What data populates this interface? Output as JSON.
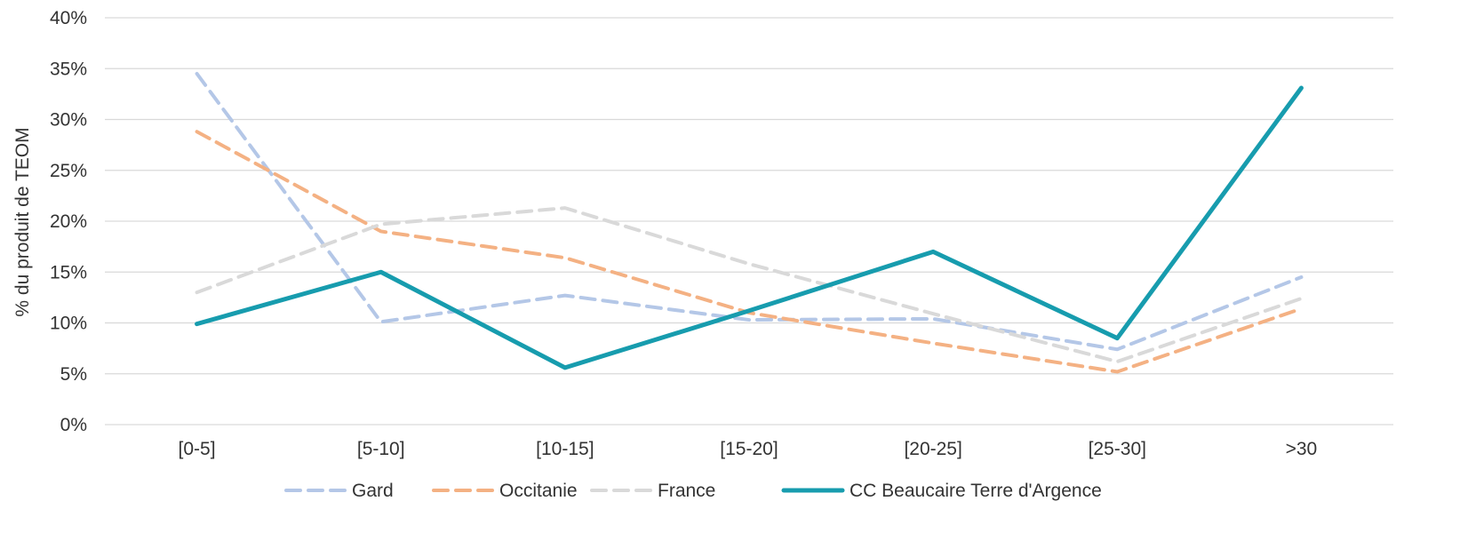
{
  "chart_data": {
    "type": "line",
    "categories": [
      "[0-5]",
      "[5-10]",
      "[10-15]",
      "[15-20]",
      "[20-25]",
      "[25-30]",
      ">30"
    ],
    "ylabel": "% du produit de TEOM",
    "xlabel": "",
    "ylim": [
      0,
      40
    ],
    "y_ticks": [
      "0%",
      "5%",
      "10%",
      "15%",
      "20%",
      "25%",
      "30%",
      "35%",
      "40%"
    ],
    "grid": true,
    "legend_position": "bottom",
    "series": [
      {
        "name": "Gard",
        "color": "#b4c7e7",
        "style": "dashed",
        "values": [
          34.5,
          10.1,
          12.7,
          10.3,
          10.4,
          7.4,
          14.5
        ]
      },
      {
        "name": "Occitanie",
        "color": "#f4b183",
        "style": "dashed",
        "values": [
          28.8,
          19.0,
          16.4,
          11.0,
          8.0,
          5.2,
          11.4
        ]
      },
      {
        "name": "France",
        "color": "#d9d9d9",
        "style": "dashed",
        "values": [
          13.0,
          19.7,
          21.3,
          15.8,
          10.9,
          6.2,
          12.4
        ]
      },
      {
        "name": "CC Beaucaire Terre d'Argence",
        "color": "#179cae",
        "style": "solid",
        "values": [
          9.9,
          15.0,
          5.6,
          11.2,
          17.0,
          8.5,
          33.1
        ]
      }
    ]
  }
}
